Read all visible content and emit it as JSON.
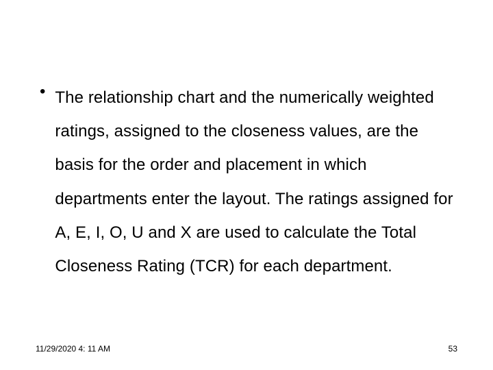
{
  "bullet": {
    "marker": "•",
    "text": "The relationship chart and the numerically weighted ratings, assigned to the closeness values, are the basis for the order and placement in which departments enter the layout. The ratings assigned for A, E, I, O, U and X are used to calculate the Total Closeness Rating (TCR) for each department."
  },
  "footer": {
    "date": "11/29/2020 4: 11 AM",
    "page": "53"
  },
  "style": {
    "background_color": "#ffffff",
    "text_color": "#000000",
    "body_fontsize": 24,
    "footer_fontsize": 12,
    "line_height": 2.05
  }
}
